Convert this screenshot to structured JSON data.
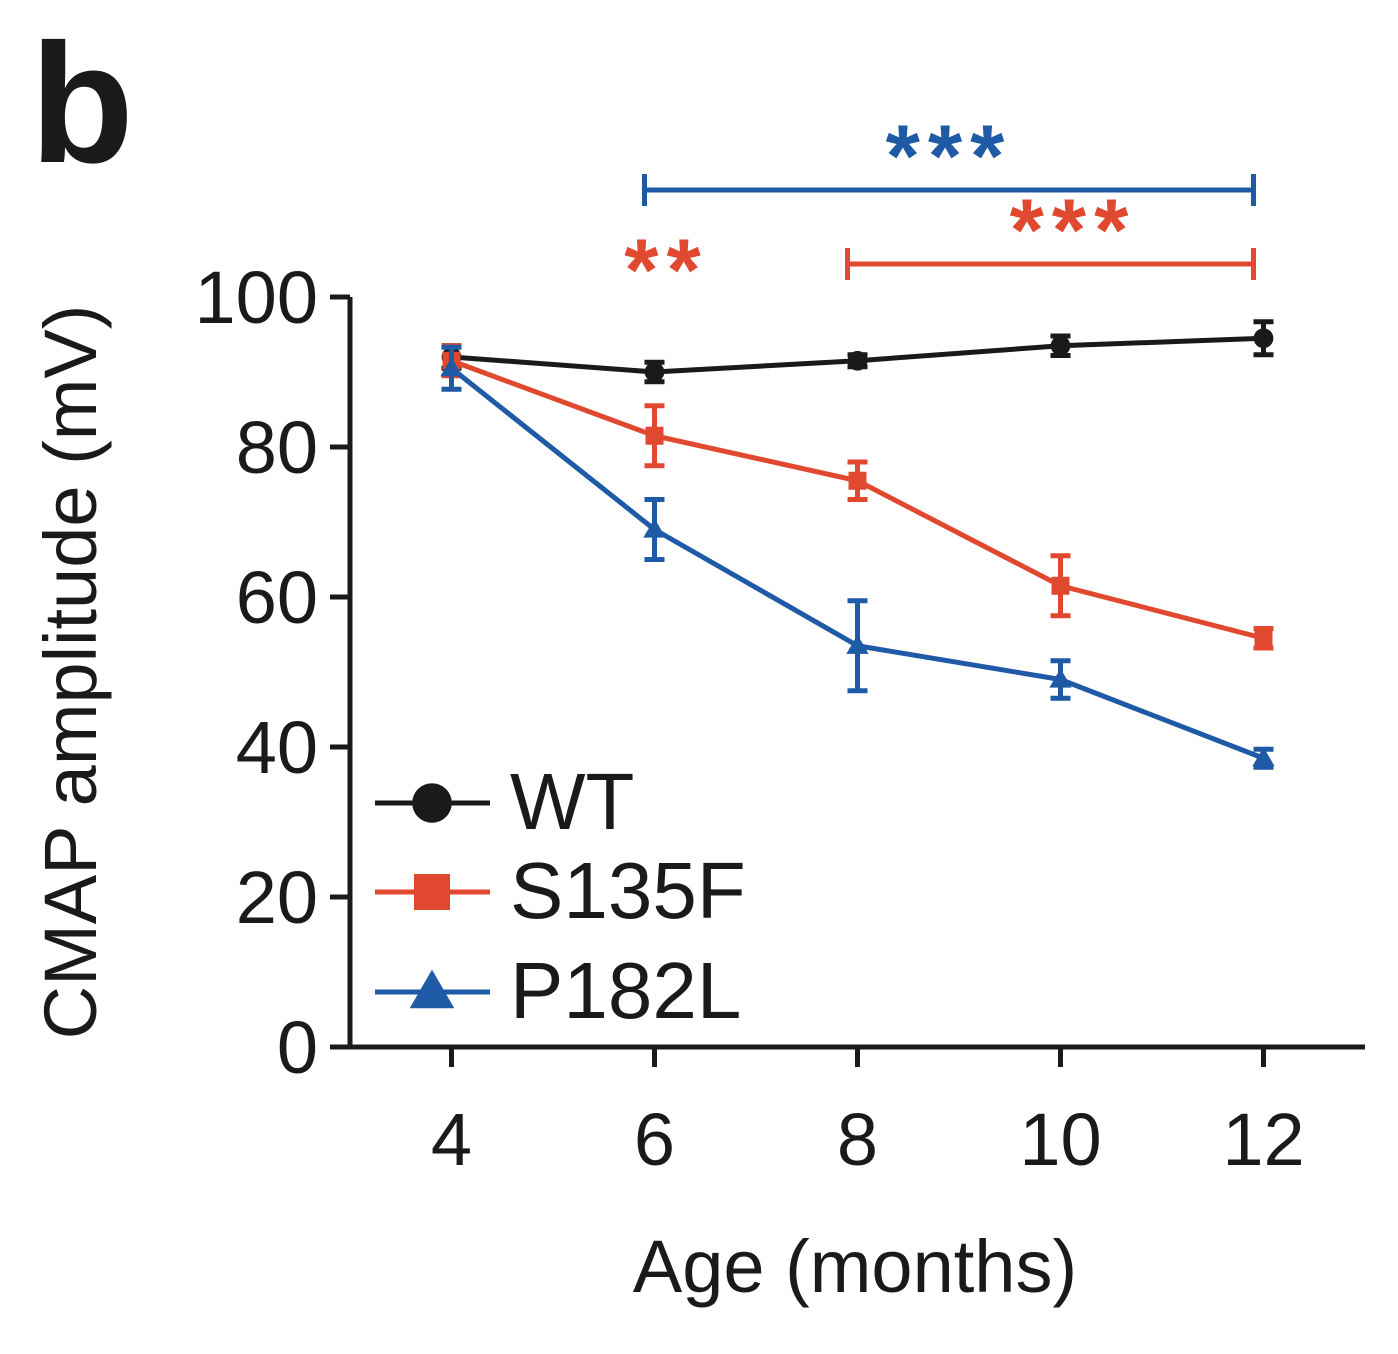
{
  "panel_label": "b",
  "chart_data": {
    "type": "line",
    "title": "",
    "xlabel": "Age (months)",
    "ylabel": "CMAP amplitude (mV)",
    "x": [
      4,
      6,
      8,
      10,
      12
    ],
    "x_ticks": [
      "4",
      "6",
      "8",
      "10",
      "12"
    ],
    "xlim": [
      3,
      13
    ],
    "ylim": [
      0,
      100
    ],
    "y_ticks": [
      "0",
      "20",
      "40",
      "60",
      "80",
      "100"
    ],
    "grid": false,
    "legend_position": "bottom-left",
    "series": [
      {
        "name": "WT",
        "color": "#1a1a1a",
        "marker": "circle",
        "values": [
          92,
          90,
          91.5,
          93.5,
          94.5
        ],
        "errors": [
          1.5,
          1.3,
          0.8,
          1.3,
          2.2
        ]
      },
      {
        "name": "S135F",
        "color": "#e0492f",
        "marker": "square",
        "values": [
          91.5,
          81.5,
          75.5,
          61.5,
          54.5
        ],
        "errors": [
          2.0,
          4.0,
          2.5,
          4.0,
          1.3
        ]
      },
      {
        "name": "P182L",
        "color": "#1f5aa6",
        "marker": "triangle",
        "values": [
          90.5,
          69,
          53.5,
          49,
          38.5
        ],
        "errors": [
          2.8,
          4.0,
          6.0,
          2.5,
          1.2
        ]
      }
    ],
    "significance": [
      {
        "label": "***",
        "color": "#1f5aa6",
        "x_start": 6,
        "x_end": 12
      },
      {
        "label": "***",
        "color": "#e0492f",
        "x_start": 8,
        "x_end": 12
      },
      {
        "label": "**",
        "color": "#e0492f",
        "x": 6
      }
    ]
  }
}
